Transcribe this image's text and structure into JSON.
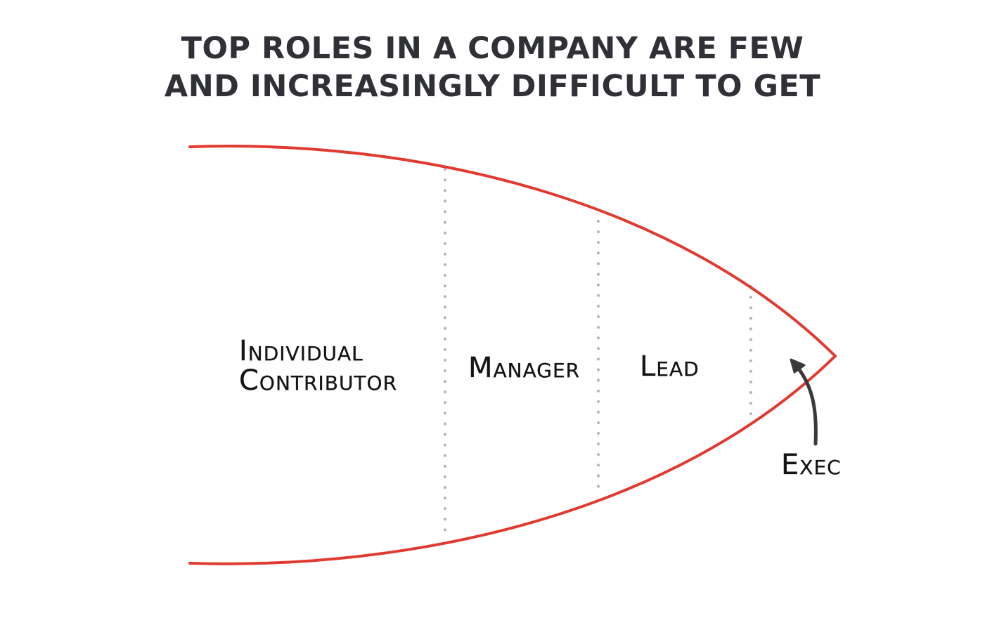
{
  "title": {
    "line1": "TOP ROLES IN A COMPANY ARE FEW",
    "line2": "AND INCREASINGLY DIFFICULT TO GET"
  },
  "diagram": {
    "labels": {
      "individual_line1": "Individual",
      "individual_line2": "Contributor",
      "manager": "Manager",
      "lead": "Lead",
      "exec": "Exec"
    },
    "colors": {
      "outline": "#e03a31",
      "divider": "#b5b5b5",
      "arrow": "#3a3a3d",
      "text": "#141414",
      "title": "#2f3136"
    }
  }
}
